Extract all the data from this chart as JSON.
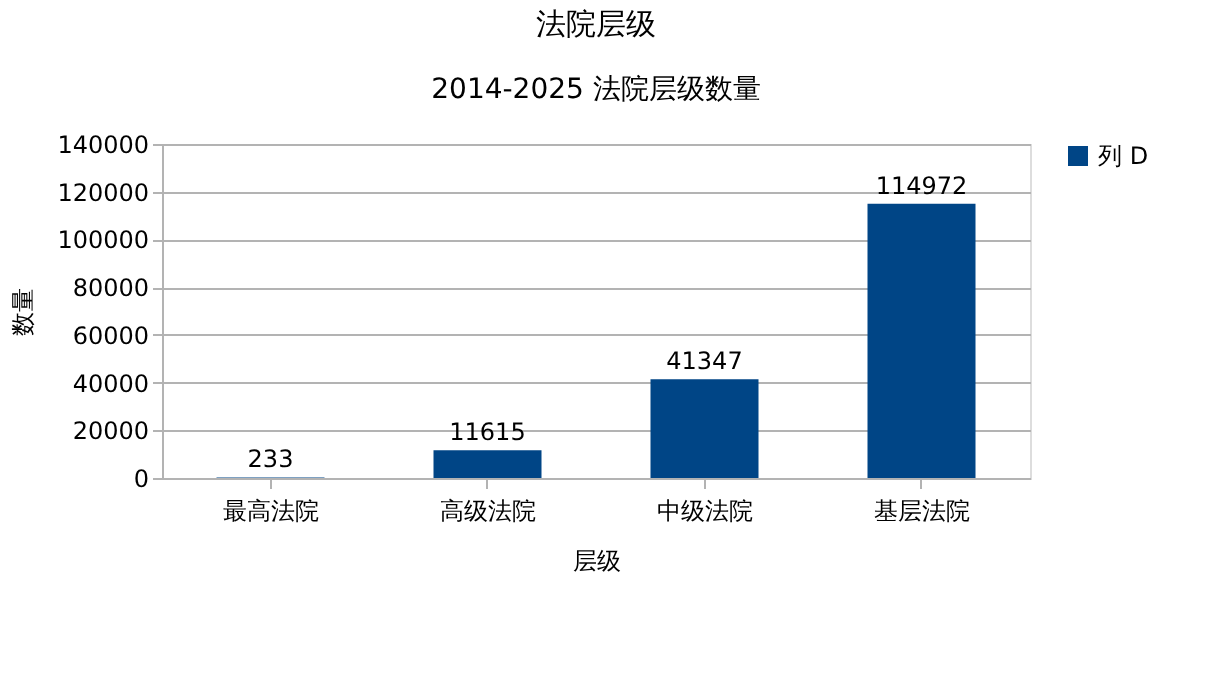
{
  "chart_data": {
    "type": "bar",
    "title": "法院层级",
    "subtitle": "2014-2025 法院层级数量",
    "xlabel": "层级",
    "ylabel": "数量",
    "categories": [
      "最高法院",
      "高级法院",
      "中级法院",
      "基层法院"
    ],
    "series": [
      {
        "name": "列 D",
        "color": "#004586",
        "values": [
          233,
          11615,
          41347,
          114972
        ]
      }
    ],
    "ylim": [
      0,
      140000
    ],
    "yticks": [
      0,
      20000,
      40000,
      60000,
      80000,
      100000,
      120000,
      140000
    ],
    "grid": "y",
    "legend": "right",
    "data_labels": true
  }
}
